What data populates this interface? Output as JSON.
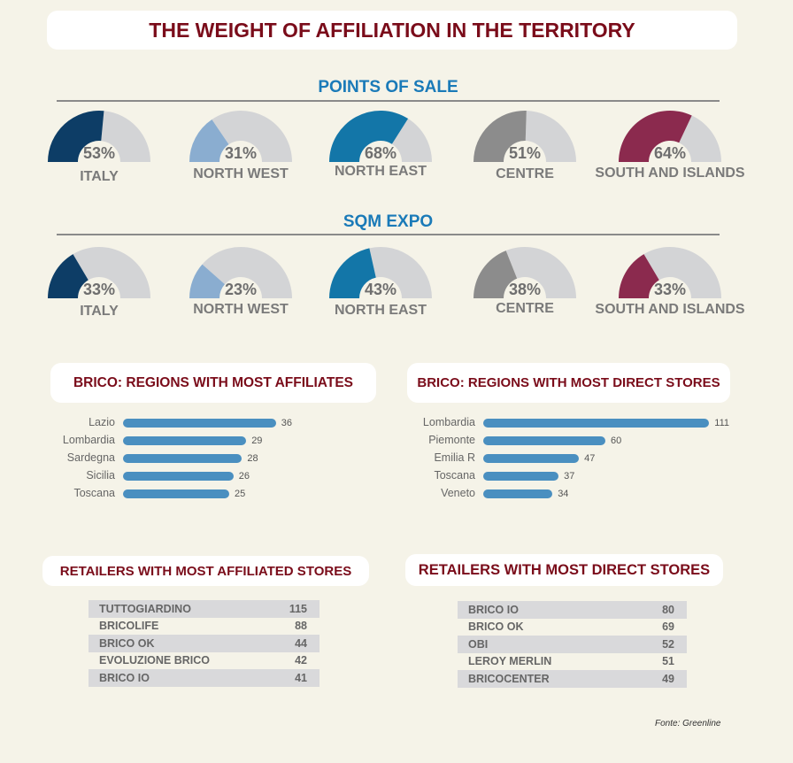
{
  "title": "THE WEIGHT OF AFFILIATION IN THE TERRITORY",
  "chart_data": [
    {
      "type": "gauge",
      "title": "POINTS OF SALE",
      "categories": [
        "ITALY",
        "NORTH WEST",
        "NORTH EAST",
        "CENTRE",
        "SOUTH AND ISLANDS"
      ],
      "values": [
        53,
        31,
        68,
        51,
        64
      ],
      "labels": [
        "53%",
        "31%",
        "68%",
        "51%",
        "64%"
      ],
      "colors": [
        "#0d3d66",
        "#8aadd0",
        "#1376a8",
        "#8c8c8c",
        "#8b2a4e"
      ]
    },
    {
      "type": "gauge",
      "title": "SQM EXPO",
      "categories": [
        "ITALY",
        "NORTH WEST",
        "NORTH EAST",
        "CENTRE",
        "SOUTH AND ISLANDS"
      ],
      "values": [
        33,
        23,
        43,
        38,
        33
      ],
      "labels": [
        "33%",
        "23%",
        "43%",
        "38%",
        "33%"
      ],
      "colors": [
        "#0d3d66",
        "#8aadd0",
        "#1376a8",
        "#8c8c8c",
        "#8b2a4e"
      ]
    },
    {
      "type": "bar",
      "title": "BRICO: REGIONS WITH MOST AFFILIATES",
      "categories": [
        "Lazio",
        "Lombardia",
        "Sardegna",
        "Sicilia",
        "Toscana"
      ],
      "values": [
        36,
        29,
        28,
        26,
        25
      ]
    },
    {
      "type": "bar",
      "title": "BRICO: REGIONS WITH MOST DIRECT STORES",
      "categories": [
        "Lombardia",
        "Piemonte",
        "Emilia R",
        "Toscana",
        "Veneto"
      ],
      "values": [
        111,
        60,
        47,
        37,
        34
      ]
    },
    {
      "type": "table",
      "title": "RETAILERS WITH MOST AFFILIATED STORES",
      "rows": [
        [
          "TUTTOGIARDINO",
          "115"
        ],
        [
          "BRICOLIFE",
          "88"
        ],
        [
          "BRICO OK",
          "44"
        ],
        [
          "EVOLUZIONE BRICO",
          "42"
        ],
        [
          "BRICO IO",
          "41"
        ]
      ]
    },
    {
      "type": "table",
      "title": "RETAILERS WITH MOST DIRECT STORES",
      "rows": [
        [
          "BRICO IO",
          "80"
        ],
        [
          "BRICO OK",
          "69"
        ],
        [
          "OBI",
          "52"
        ],
        [
          "LEROY MERLIN",
          "51"
        ],
        [
          "BRICOCENTER",
          "49"
        ]
      ]
    }
  ],
  "gauge_track_color": "#d3d4d6",
  "bar_color": "#4a8fc0",
  "source": "Fonte: Greenline"
}
